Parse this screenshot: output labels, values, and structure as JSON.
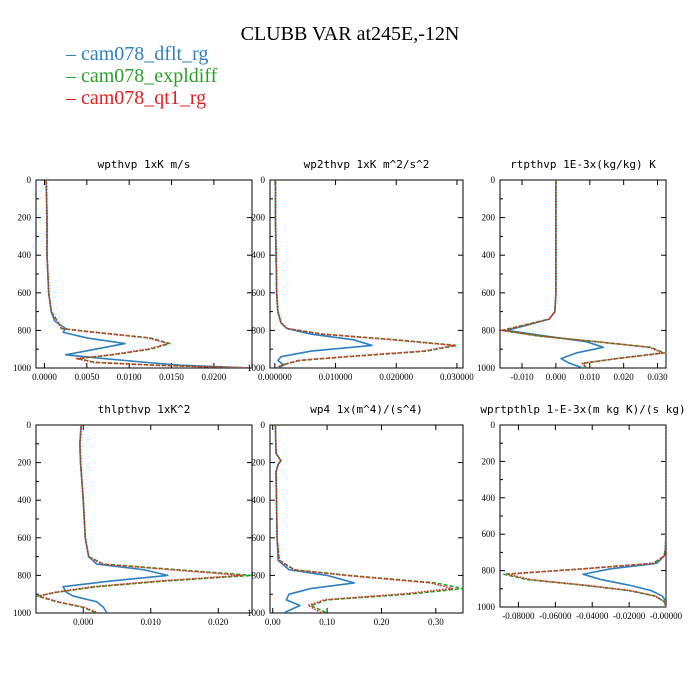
{
  "figure": {
    "title": "CLUBB VAR at245E,-12N"
  },
  "legend": [
    {
      "name": "cam078_dflt_rg",
      "color": "#2f7fbf"
    },
    {
      "name": "cam078_expldiff",
      "color": "#2aa02a"
    },
    {
      "name": "cam078_qt1_rg",
      "color": "#e02020"
    }
  ],
  "chart_data": [
    {
      "type": "line",
      "title": "wpthvp   1xK m/s",
      "xlim": [
        -0.001,
        0.0245
      ],
      "ylim": [
        1000,
        0
      ],
      "xticks": [
        0.0,
        0.005,
        0.01,
        0.015,
        0.02
      ],
      "xtick_labels": [
        "0.0000",
        "0.0050",
        "0.0100",
        "0.0150",
        "0.0200"
      ],
      "yticks": [
        0,
        200,
        400,
        600,
        800,
        1000
      ],
      "y": [
        0,
        200,
        400,
        600,
        700,
        750,
        790,
        810,
        840,
        870,
        900,
        930,
        950,
        970,
        985,
        1000
      ],
      "series": [
        {
          "name": "cam078_dflt_rg",
          "values": [
            0.0002,
            0.0003,
            0.0003,
            0.0005,
            0.0008,
            0.0012,
            0.0025,
            0.0022,
            0.005,
            0.0095,
            0.006,
            0.0025,
            0.007,
            0.012,
            0.016,
            0.0244
          ]
        },
        {
          "name": "cam078_expldiff",
          "values": [
            0.0002,
            0.0003,
            0.0003,
            0.0005,
            0.0008,
            0.0015,
            0.002,
            0.006,
            0.0125,
            0.0148,
            0.0125,
            0.008,
            0.004,
            0.006,
            0.013,
            0.0244
          ]
        },
        {
          "name": "cam078_qt1_rg",
          "values": [
            0.0002,
            0.0003,
            0.0003,
            0.0005,
            0.0008,
            0.0015,
            0.002,
            0.0058,
            0.0122,
            0.0146,
            0.0122,
            0.0078,
            0.0038,
            0.0058,
            0.0128,
            0.0244
          ]
        }
      ]
    },
    {
      "type": "line",
      "title": "wp2thvp   1xK m^2/s^2",
      "xlim": [
        -0.0008,
        0.031
      ],
      "ylim": [
        1000,
        0
      ],
      "xticks": [
        0.0,
        0.01,
        0.02,
        0.03
      ],
      "xtick_labels": [
        "0.000000",
        "0.010000",
        "0.020000",
        "0.030000"
      ],
      "yticks": [
        0,
        200,
        400,
        600,
        800,
        1000
      ],
      "y": [
        0,
        200,
        400,
        600,
        700,
        760,
        790,
        820,
        850,
        880,
        910,
        940,
        960,
        985,
        1000
      ],
      "series": [
        {
          "name": "cam078_dflt_rg",
          "values": [
            0.0001,
            0.0001,
            0.0002,
            0.0003,
            0.0005,
            0.001,
            0.002,
            0.006,
            0.013,
            0.016,
            0.006,
            0.001,
            0.0005,
            0.0015,
            0.0003
          ]
        },
        {
          "name": "cam078_expldiff",
          "values": [
            0.0001,
            0.0001,
            0.0002,
            0.0003,
            0.0005,
            0.001,
            0.002,
            0.008,
            0.02,
            0.03,
            0.025,
            0.012,
            0.004,
            0.0012,
            0.0003
          ]
        },
        {
          "name": "cam078_qt1_rg",
          "values": [
            0.0001,
            0.0001,
            0.0002,
            0.0003,
            0.0005,
            0.001,
            0.002,
            0.0078,
            0.0195,
            0.0295,
            0.0245,
            0.0115,
            0.0038,
            0.0011,
            0.0003
          ]
        }
      ]
    },
    {
      "type": "line",
      "title": "rtpthvp   1E-3x(kg/kg) K",
      "xlim": [
        -0.0165,
        0.0325
      ],
      "ylim": [
        1000,
        0
      ],
      "xticks": [
        -0.01,
        0.0,
        0.01,
        0.02,
        0.03
      ],
      "xtick_labels": [
        "-0.010",
        "0.000",
        "0.010",
        "0.020",
        "0.030"
      ],
      "yticks": [
        0,
        200,
        400,
        600,
        800,
        1000
      ],
      "y": [
        0,
        200,
        400,
        600,
        700,
        740,
        770,
        800,
        830,
        860,
        890,
        920,
        950,
        975,
        1000
      ],
      "series": [
        {
          "name": "cam078_dflt_rg",
          "values": [
            0.0,
            0.0,
            0.0,
            0.0,
            -0.0003,
            -0.002,
            -0.008,
            -0.0145,
            -0.003,
            0.009,
            0.014,
            0.006,
            0.0015,
            0.004,
            0.008
          ]
        },
        {
          "name": "cam078_expldiff",
          "values": [
            0.0,
            0.0,
            0.0,
            0.0,
            -0.0003,
            -0.002,
            -0.009,
            -0.016,
            -0.005,
            0.012,
            0.028,
            0.032,
            0.018,
            0.008,
            0.009
          ]
        },
        {
          "name": "cam078_qt1_rg",
          "values": [
            0.0,
            0.0,
            0.0,
            0.0,
            -0.0003,
            -0.002,
            -0.0088,
            -0.0158,
            -0.0048,
            0.0118,
            0.0275,
            0.0315,
            0.0178,
            0.0078,
            0.0088
          ]
        }
      ]
    },
    {
      "type": "line",
      "title": "thlpthvp   1xK^2",
      "xlim": [
        -0.007,
        0.025
      ],
      "ylim": [
        1000,
        0
      ],
      "xticks": [
        0.0,
        0.01,
        0.02
      ],
      "xtick_labels": [
        "0.000",
        "0.010",
        "0.020"
      ],
      "yticks": [
        0,
        200,
        400,
        600,
        800,
        1000
      ],
      "y": [
        0,
        100,
        200,
        400,
        600,
        700,
        740,
        770,
        800,
        830,
        860,
        890,
        910,
        940,
        970,
        1000
      ],
      "series": [
        {
          "name": "cam078_dflt_rg",
          "values": [
            -0.0003,
            -0.0005,
            -0.0004,
            0.0,
            0.0003,
            0.0008,
            0.002,
            0.009,
            0.0125,
            0.004,
            -0.003,
            -0.0025,
            -0.0015,
            0.002,
            0.003,
            0.0035
          ]
        },
        {
          "name": "cam078_expldiff",
          "values": [
            -0.0003,
            -0.0005,
            -0.0004,
            0.0,
            0.0003,
            0.0008,
            0.003,
            0.014,
            0.025,
            0.012,
            0.002,
            -0.004,
            -0.0068,
            -0.004,
            0.0,
            0.002
          ]
        },
        {
          "name": "cam078_qt1_rg",
          "values": [
            -0.0003,
            -0.0005,
            -0.0004,
            0.0,
            0.0003,
            0.0008,
            0.0028,
            0.0132,
            0.0235,
            0.0112,
            0.0015,
            -0.0042,
            -0.0065,
            -0.0038,
            0.0002,
            0.0022
          ]
        }
      ]
    },
    {
      "type": "line",
      "title": "wp4   1x(m^4)/(s^4)",
      "xlim": [
        -0.005,
        0.35
      ],
      "ylim": [
        1000,
        0
      ],
      "xticks": [
        0.0,
        0.1,
        0.2,
        0.3
      ],
      "xtick_labels": [
        "0.00",
        "0.10",
        "0.20",
        "0.30"
      ],
      "yticks": [
        0,
        200,
        400,
        600,
        800,
        1000
      ],
      "y": [
        0,
        150,
        190,
        210,
        250,
        400,
        600,
        720,
        770,
        800,
        840,
        870,
        900,
        930,
        960,
        1000
      ],
      "series": [
        {
          "name": "cam078_dflt_rg",
          "values": [
            0.005,
            0.006,
            0.015,
            0.01,
            0.006,
            0.007,
            0.008,
            0.01,
            0.03,
            0.1,
            0.15,
            0.07,
            0.03,
            0.025,
            0.05,
            0.02
          ]
        },
        {
          "name": "cam078_expldiff",
          "values": [
            0.005,
            0.006,
            0.015,
            0.01,
            0.006,
            0.007,
            0.008,
            0.012,
            0.04,
            0.14,
            0.3,
            0.35,
            0.25,
            0.1,
            0.07,
            0.1
          ]
        },
        {
          "name": "cam078_qt1_rg",
          "values": [
            0.005,
            0.006,
            0.015,
            0.01,
            0.006,
            0.007,
            0.008,
            0.012,
            0.038,
            0.135,
            0.29,
            0.33,
            0.235,
            0.095,
            0.065,
            0.09
          ]
        }
      ]
    },
    {
      "type": "line",
      "title": "wprtpthlp   1-E-3x(m kg K)/(s kg)",
      "xlim": [
        -0.09,
        0.0
      ],
      "ylim": [
        1000,
        0
      ],
      "xticks": [
        -0.08,
        -0.06,
        -0.04,
        -0.02,
        0.0
      ],
      "xtick_labels": [
        "-0.08000",
        "-0.06000",
        "-0.04000",
        "-0.02000",
        "-0.00000"
      ],
      "yticks": [
        0,
        200,
        400,
        600,
        800,
        1000
      ],
      "y": [
        0,
        200,
        400,
        600,
        680,
        720,
        760,
        790,
        820,
        850,
        880,
        910,
        940,
        970,
        1000
      ],
      "series": [
        {
          "name": "cam078_dflt_rg",
          "values": [
            0.0,
            0.0,
            0.0,
            0.0,
            -0.0003,
            -0.001,
            -0.005,
            -0.03,
            -0.045,
            -0.035,
            -0.02,
            -0.008,
            -0.002,
            0.0,
            0.0
          ]
        },
        {
          "name": "cam078_expldiff",
          "values": [
            0.0,
            0.0,
            0.0,
            0.0,
            -0.0003,
            -0.001,
            -0.007,
            -0.045,
            -0.088,
            -0.075,
            -0.045,
            -0.02,
            -0.006,
            -0.001,
            0.0
          ]
        },
        {
          "name": "cam078_qt1_rg",
          "values": [
            0.0,
            0.0,
            0.0,
            0.0,
            -0.0003,
            -0.001,
            -0.0068,
            -0.044,
            -0.086,
            -0.073,
            -0.044,
            -0.019,
            -0.0058,
            -0.001,
            0.0
          ]
        }
      ]
    }
  ]
}
